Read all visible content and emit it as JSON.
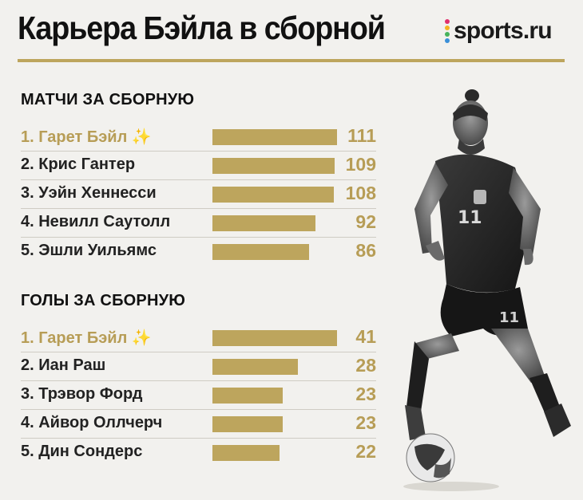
{
  "header": {
    "title": "Карьера Бэйла в сборной",
    "logo_text": "sports.ru",
    "logo_dot_colors": [
      "#e0316d",
      "#f5b321",
      "#47b35c",
      "#3a8fd8"
    ]
  },
  "colors": {
    "accent": "#bda55d",
    "highlight_text": "#b79d56",
    "background": "#f2f1ee"
  },
  "chart_data": [
    {
      "type": "bar",
      "title": "МАТЧИ ЗА СБОРНУЮ",
      "orientation": "horizontal",
      "categories": [
        "1. Гарет Бэйл ✨",
        "2. Крис Гантер",
        "3. Уэйн Хеннесси",
        "4. Невилл Саутолл",
        "5. Эшли Уильямс"
      ],
      "values": [
        111,
        109,
        108,
        92,
        86
      ],
      "value_labels": [
        "111",
        "109",
        "108",
        "92",
        "86"
      ],
      "highlight_index": 0,
      "xlim": [
        0,
        111
      ]
    },
    {
      "type": "bar",
      "title": "ГОЛЫ ЗА СБОРНУЮ",
      "orientation": "horizontal",
      "categories": [
        "1. Гарет Бэйл ✨",
        "2. Иан Раш",
        "3. Трэвор Форд",
        "4. Айвор Оллчерч",
        "5. Дин Сондерс"
      ],
      "values": [
        41,
        28,
        23,
        23,
        22
      ],
      "value_labels": [
        "41",
        "28",
        "23",
        "23",
        "22"
      ],
      "highlight_index": 0,
      "xlim": [
        0,
        41
      ]
    }
  ]
}
